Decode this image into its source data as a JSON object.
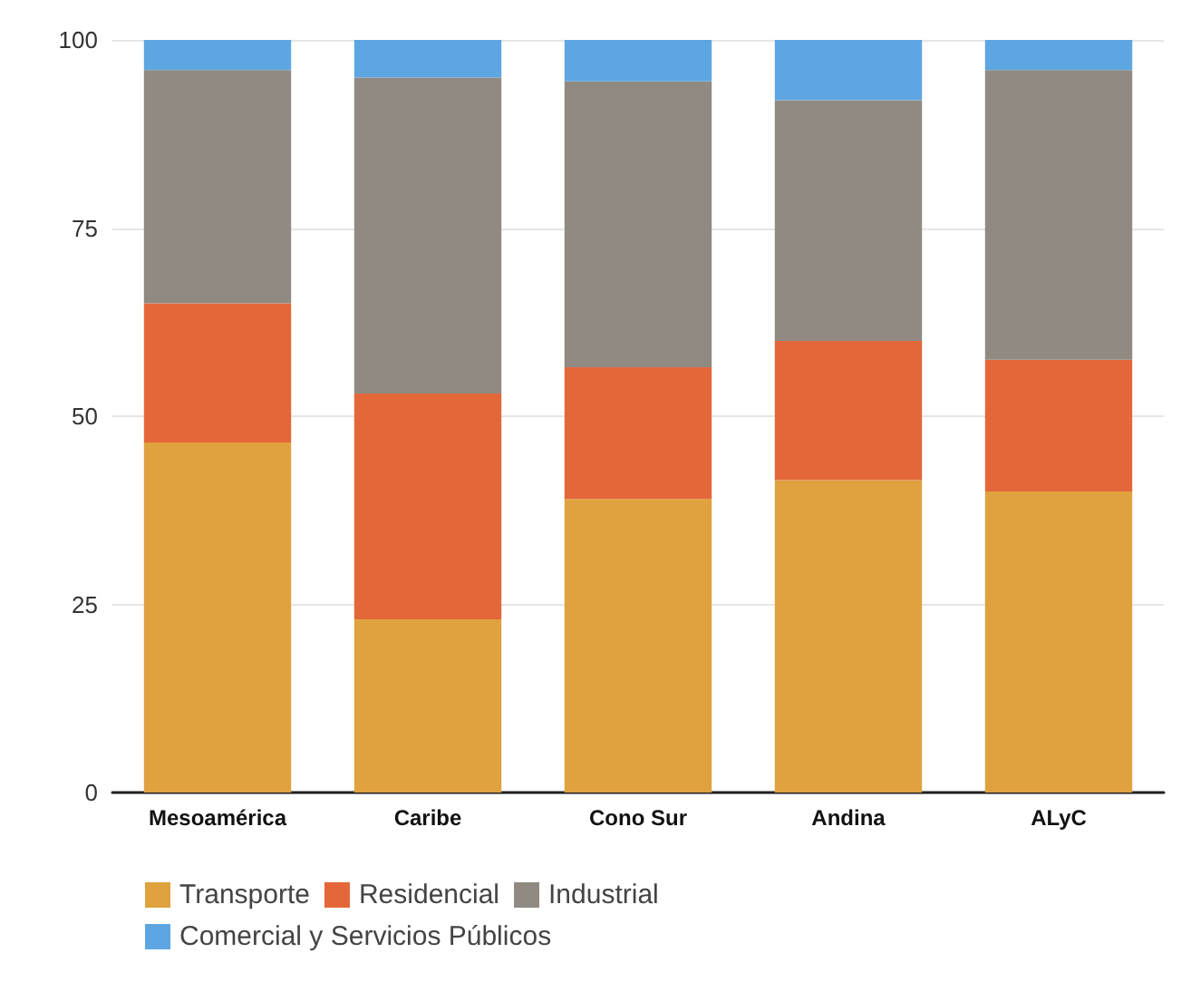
{
  "chart_data": {
    "type": "bar",
    "stacked": true,
    "categories": [
      "Mesoamérica",
      "Caribe",
      "Cono Sur",
      "Andina",
      "ALyC"
    ],
    "series": [
      {
        "name": "Transporte",
        "color": "#dfa23f",
        "values": [
          46.5,
          23,
          39,
          41.5,
          40
        ]
      },
      {
        "name": "Residencial",
        "color": "#e4673a",
        "values": [
          18.5,
          30,
          17.5,
          18.5,
          17.5
        ]
      },
      {
        "name": "Industrial",
        "color": "#918a82",
        "values": [
          31,
          42,
          38,
          32,
          38.5
        ]
      },
      {
        "name": "Comercial y Servicios Públicos",
        "color": "#5ea6e2",
        "values": [
          4,
          5,
          5.5,
          8,
          4
        ]
      }
    ],
    "ylim": [
      0,
      100
    ],
    "yticks": [
      0,
      25,
      50,
      75,
      100
    ],
    "grid": "y",
    "legend": "bottom left"
  }
}
